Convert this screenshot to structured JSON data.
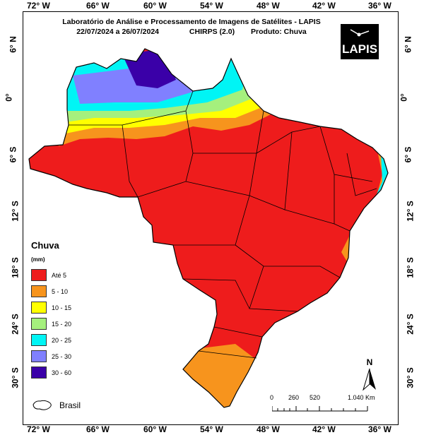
{
  "header": {
    "line1": "Laboratório de Análise e Processamento de Imagens de Satélites - LAPIS",
    "date_range": "22/07/2024  a 26/07/2024",
    "model": "CHIRPS (2.0)",
    "product": "Produto: Chuva"
  },
  "logo": {
    "text": "LAPIS"
  },
  "axes": {
    "longitude_labels": [
      "72° W",
      "66° W",
      "60° W",
      "54° W",
      "48° W",
      "42° W",
      "36° W"
    ],
    "latitude_labels": [
      "6° N",
      "0°",
      "6° S",
      "12° S",
      "18° S",
      "24° S",
      "30° S"
    ]
  },
  "legend": {
    "title": "Chuva",
    "unit": "(mm)",
    "items": [
      {
        "label": "Até 5",
        "color": "#ee1c1c"
      },
      {
        "label": "5 - 10",
        "color": "#f7941d"
      },
      {
        "label": "10 - 15",
        "color": "#ffff00"
      },
      {
        "label": "15 - 20",
        "color": "#a5f07d"
      },
      {
        "label": "20 - 25",
        "color": "#00f5f5"
      },
      {
        "label": "25 - 30",
        "color": "#8080ff"
      },
      {
        "label": "30 - 60",
        "color": "#3a00a8"
      }
    ],
    "brasil_label": "Brasil"
  },
  "scale_bar": {
    "labels": [
      "0",
      "260",
      "520",
      "1.040 Km"
    ]
  },
  "north": {
    "label": "N"
  },
  "colors": {
    "dry": "#ee1c1c",
    "orange": "#f7941d",
    "yellow": "#ffff00",
    "green": "#a5f07d",
    "cyan": "#00f5f5",
    "lightblue": "#8080ff",
    "purple": "#3a00a8"
  }
}
